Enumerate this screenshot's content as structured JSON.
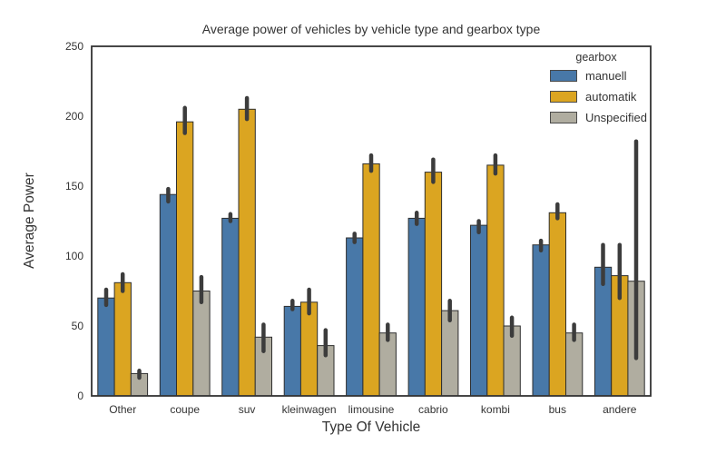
{
  "figure": {
    "background": "#ffffff"
  },
  "chart_data": {
    "type": "bar",
    "title": "Average power of vehicles by vehicle type and gearbox type",
    "xlabel": "Type Of Vehicle",
    "ylabel": "Average Power",
    "ylim": [
      0,
      250
    ],
    "y_ticks": [
      0,
      50,
      100,
      150,
      200,
      250
    ],
    "grid": false,
    "legend": {
      "title": "gearbox",
      "position": "upper right"
    },
    "categories": [
      "Other",
      "coupe",
      "suv",
      "kleinwagen",
      "limousine",
      "cabrio",
      "kombi",
      "bus",
      "andere"
    ],
    "series": [
      {
        "name": "manuell",
        "color": "#4878A8",
        "values": [
          70,
          144,
          127,
          64,
          113,
          127,
          122,
          108,
          92
        ],
        "ci": [
          [
            65,
            76
          ],
          [
            139,
            148
          ],
          [
            125,
            130
          ],
          [
            62,
            68
          ],
          [
            110,
            116
          ],
          [
            123,
            131
          ],
          [
            117,
            125
          ],
          [
            104,
            111
          ],
          [
            80,
            108
          ]
        ]
      },
      {
        "name": "automatik",
        "color": "#DBA521",
        "values": [
          81,
          196,
          205,
          67,
          166,
          160,
          165,
          131,
          86
        ],
        "ci": [
          [
            75,
            87
          ],
          [
            188,
            206
          ],
          [
            198,
            213
          ],
          [
            59,
            76
          ],
          [
            161,
            172
          ],
          [
            153,
            169
          ],
          [
            159,
            172
          ],
          [
            127,
            137
          ],
          [
            70,
            108
          ]
        ]
      },
      {
        "name": "Unspecified",
        "color": "#B0ADA0",
        "values": [
          16,
          75,
          42,
          36,
          45,
          61,
          50,
          45,
          82
        ],
        "ci": [
          [
            13,
            18
          ],
          [
            67,
            85
          ],
          [
            32,
            51
          ],
          [
            29,
            47
          ],
          [
            40,
            51
          ],
          [
            54,
            68
          ],
          [
            43,
            56
          ],
          [
            40,
            51
          ],
          [
            27,
            182
          ]
        ]
      }
    ],
    "styles": {
      "axis_color": "#333333",
      "text_color": "#333333",
      "error_bar_color": "#3C3C3C",
      "bar_edge_color": "#2E2E2E",
      "tick_font_size": 12,
      "bar_group_width_fraction": 0.8
    }
  }
}
